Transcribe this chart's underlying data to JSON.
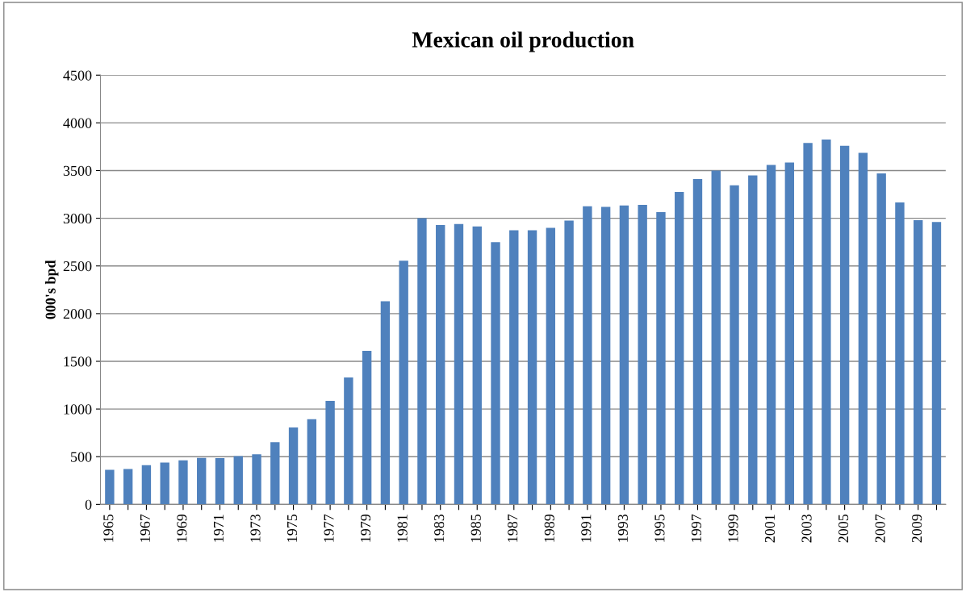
{
  "chart_data": {
    "type": "bar",
    "title": "Mexican oil production",
    "ylabel": "000's bpd",
    "categories": [
      "1965",
      null,
      "1967",
      null,
      "1969",
      null,
      "1971",
      null,
      "1973",
      null,
      "1975",
      null,
      "1977",
      null,
      "1979",
      null,
      "1981",
      null,
      "1983",
      null,
      "1985",
      null,
      "1987",
      null,
      "1989",
      null,
      "1991",
      null,
      "1993",
      null,
      "1995",
      null,
      "1997",
      null,
      "1999",
      null,
      "2001",
      null,
      "2003",
      null,
      "2005",
      null,
      "2007",
      null,
      "2009",
      null
    ],
    "values": [
      362,
      370,
      411,
      439,
      461,
      487,
      486,
      506,
      525,
      653,
      806,
      894,
      1085,
      1330,
      1610,
      2130,
      2555,
      3000,
      2930,
      2940,
      2915,
      2750,
      2875,
      2875,
      2900,
      2975,
      3125,
      3120,
      3135,
      3140,
      3065,
      3275,
      3410,
      3500,
      3345,
      3450,
      3560,
      3585,
      3790,
      3825,
      3760,
      3685,
      3470,
      3165,
      2980,
      2960
    ],
    "color": "#4f81bd",
    "ylim": [
      0,
      4500
    ],
    "yticks": [
      0,
      500,
      1000,
      1500,
      2000,
      2500,
      3000,
      3500,
      4000,
      4500
    ],
    "grid": "y",
    "legend": false
  }
}
